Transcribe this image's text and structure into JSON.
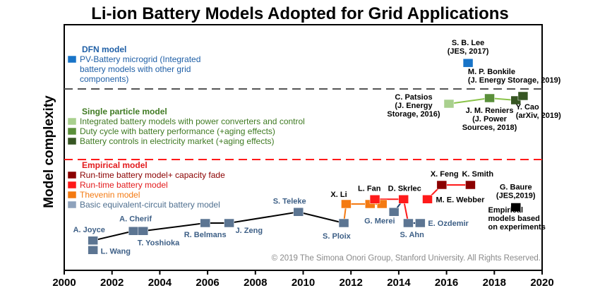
{
  "chart_data": {
    "type": "scatter",
    "title": "Li-ion Battery Models Adopted for Grid Applications",
    "xlabel": "",
    "ylabel": "Model complexity",
    "xlim": [
      2000,
      2020
    ],
    "x_ticks": [
      2000,
      2002,
      2004,
      2006,
      2008,
      2010,
      2012,
      2014,
      2016,
      2018,
      2020
    ],
    "copyright": "© 2019 The Simona Onori Group, Stanford University. All Rights Reserved.",
    "sections": [
      {
        "title": "DFN model",
        "color": "#1f5fa6",
        "entries": [
          {
            "text": "PV-Battery microgrid (Integrated",
            "color": "#1f5fa6",
            "swatch": "#1874c8"
          },
          {
            "text": "battery models with other grid",
            "color": "#1f5fa6",
            "swatch": ""
          },
          {
            "text": "components)",
            "color": "#1f5fa6",
            "swatch": ""
          }
        ]
      },
      {
        "title": "Single particle model",
        "color": "#3f7a22",
        "entries": [
          {
            "text": "Integrated battery models with power converters and control",
            "color": "#3f7a22",
            "swatch": "#a9d08e"
          },
          {
            "text": "Duty cycle with battery performance (+aging effects)",
            "color": "#3f7a22",
            "swatch": "#5a8f3a"
          },
          {
            "text": "Battery controls in electricity market (+aging effects)",
            "color": "#3f7a22",
            "swatch": "#375623"
          }
        ]
      },
      {
        "title": "Empirical model",
        "color": "#e31a1c",
        "entries": [
          {
            "text": "Run-time battery model+ capacity fade",
            "color": "#8b0000",
            "swatch": "#8b0000"
          },
          {
            "text": "Run-time battery model",
            "color": "#e31a1c",
            "swatch": "#ff1a1a"
          },
          {
            "text": "Thevenin model",
            "color": "#f47a12",
            "swatch": "#f47a12"
          },
          {
            "text": "Basic equivalent-circuit battery model",
            "color": "#4f6f8f",
            "swatch": "#8ea2bc"
          }
        ]
      }
    ],
    "series": [
      {
        "name": "Basic equivalent-circuit battery model",
        "color": "#5c7592",
        "points": [
          {
            "x": 2001.2,
            "y": 1.3,
            "label": "A. Joyce"
          },
          {
            "x": 2001.2,
            "y": 0.7,
            "label": "L. Wang"
          },
          {
            "x": 2002.9,
            "y": 1.9,
            "label": "A. Cherif"
          },
          {
            "x": 2003.3,
            "y": 1.9,
            "label": "T. Yoshioka"
          },
          {
            "x": 2005.9,
            "y": 2.4,
            "label": "R. Belmans"
          },
          {
            "x": 2006.9,
            "y": 2.4,
            "label": "J. Zeng"
          },
          {
            "x": 2009.8,
            "y": 3.1,
            "label": "S. Teleke"
          },
          {
            "x": 2011.7,
            "y": 2.4,
            "label": "S. Ploix"
          },
          {
            "x": 2013.8,
            "y": 3.1,
            "label": "G. Merei"
          },
          {
            "x": 2014.4,
            "y": 2.4,
            "label": "S. Ahn"
          },
          {
            "x": 2014.9,
            "y": 2.4,
            "label": "E. Ozdemir"
          }
        ]
      },
      {
        "name": "Thevenin model",
        "color": "#f47a12",
        "points": [
          {
            "x": 2011.8,
            "y": 3.6,
            "label": "X. Li"
          },
          {
            "x": 2012.8,
            "y": 3.6,
            "label": ""
          },
          {
            "x": 2013.3,
            "y": 3.6,
            "label": ""
          }
        ]
      },
      {
        "name": "Run-time battery model",
        "color": "#ff1a1a",
        "points": [
          {
            "x": 2013.0,
            "y": 3.9,
            "label": "L. Fan"
          },
          {
            "x": 2014.2,
            "y": 3.9,
            "label": "D. Skrlec"
          },
          {
            "x": 2015.2,
            "y": 3.9,
            "label": "M. E. Webber"
          }
        ]
      },
      {
        "name": "Run-time battery model+ capacity fade",
        "color": "#8b0000",
        "points": [
          {
            "x": 2015.8,
            "y": 4.8,
            "label": "X. Feng"
          },
          {
            "x": 2017.0,
            "y": 4.8,
            "label": "K. Smith"
          }
        ]
      },
      {
        "name": "Empirical models based on experiments",
        "color": "#000000",
        "points": [
          {
            "x": 2018.9,
            "y": 3.4,
            "label": "G. Baure\n(JES,2019)"
          }
        ]
      },
      {
        "name": "Integrated battery models with power converters and control",
        "color": "#a9d08e",
        "points": [
          {
            "x": 2016.1,
            "y": 12.9,
            "label": "C. Patsios\n(J. Energy\nStorage, 2016)"
          }
        ]
      },
      {
        "name": "Duty cycle with battery performance (+aging effects)",
        "color": "#5a8f3a",
        "points": [
          {
            "x": 2017.8,
            "y": 13.7,
            "label": "J. M. Reniers\n(J. Power\nSources, 2018)"
          }
        ]
      },
      {
        "name": "Battery controls in electricity market (+aging effects)",
        "color": "#375623",
        "points": [
          {
            "x": 2018.9,
            "y": 13.4,
            "label": "Y. Cao\n(arXiv, 2019)"
          },
          {
            "x": 2019.2,
            "y": 14.0,
            "label": "M. P. Bonkile\n(J. Energy Storage, 2019)"
          }
        ]
      },
      {
        "name": "DFN model",
        "color": "#1874c8",
        "points": [
          {
            "x": 2016.9,
            "y": 19.6,
            "label": "S. B. Lee\n(JES, 2017)"
          }
        ]
      }
    ],
    "annotations": [
      {
        "text": "Empirical\nmodels based\non experiments",
        "x": 2019.1,
        "y": 1.2
      }
    ]
  }
}
